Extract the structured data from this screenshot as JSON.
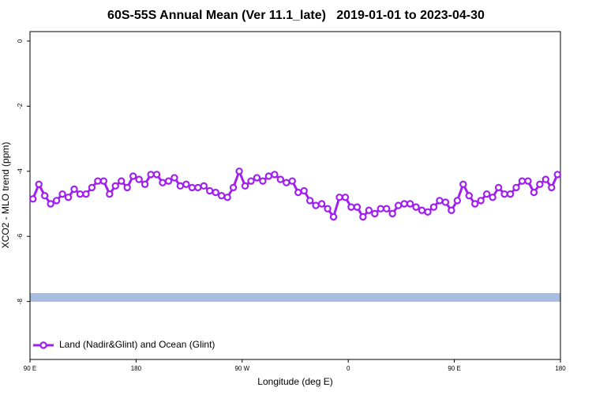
{
  "chart_data": {
    "type": "line",
    "title": "60S-55S Annual Mean (Ver 11.1_late)   2019-01-01 to 2023-04-30",
    "x_label": "Longitude (deg E)",
    "y_label": "XCO2 - MLO trend (ppm)",
    "x": [
      92.5,
      97.5,
      102.5,
      107.5,
      112.5,
      117.5,
      122.5,
      127.5,
      132.5,
      137.5,
      142.5,
      147.5,
      152.5,
      157.5,
      162.5,
      167.5,
      172.5,
      177.5,
      182.5,
      187.5,
      192.5,
      197.5,
      202.5,
      207.5,
      212.5,
      217.5,
      222.5,
      227.5,
      232.5,
      237.5,
      242.5,
      247.5,
      252.5,
      257.5,
      262.5,
      267.5,
      272.5,
      277.5,
      282.5,
      287.5,
      292.5,
      297.5,
      302.5,
      307.5,
      312.5,
      317.5,
      322.5,
      327.5,
      332.5,
      337.5,
      342.5,
      347.5,
      352.5,
      357.5,
      362.5,
      367.5,
      372.5,
      377.5,
      382.5,
      387.5,
      392.5,
      397.5,
      402.5,
      407.5,
      412.5,
      417.5,
      422.5,
      427.5,
      432.5,
      437.5,
      442.5,
      447.5,
      452.5,
      457.5,
      462.5,
      467.5,
      472.5,
      477.5,
      482.5,
      487.5,
      492.5,
      497.5,
      502.5,
      507.5,
      512.5,
      517.5,
      522.5,
      527.5,
      532.5,
      537.5
    ],
    "series": [
      {
        "name": "Land (Nadir&Glint) and Ocean (Glint)",
        "color": "#a020f0",
        "values": [
          -4.85,
          -4.4,
          -4.75,
          -5.0,
          -4.9,
          -4.7,
          -4.8,
          -4.55,
          -4.7,
          -4.7,
          -4.5,
          -4.3,
          -4.3,
          -4.7,
          -4.45,
          -4.3,
          -4.5,
          -4.15,
          -4.25,
          -4.4,
          -4.1,
          -4.1,
          -4.35,
          -4.3,
          -4.2,
          -4.45,
          -4.4,
          -4.5,
          -4.5,
          -4.45,
          -4.6,
          -4.65,
          -4.75,
          -4.8,
          -4.5,
          -4.0,
          -4.45,
          -4.3,
          -4.2,
          -4.3,
          -4.15,
          -4.1,
          -4.25,
          -4.35,
          -4.3,
          -4.65,
          -4.6,
          -4.9,
          -5.05,
          -5.0,
          -5.15,
          -5.4,
          -4.8,
          -4.8,
          -5.1,
          -5.1,
          -5.4,
          -5.2,
          -5.3,
          -5.15,
          -5.15,
          -5.3,
          -5.05,
          -5.0,
          -5.0,
          -5.1,
          -5.2,
          -5.25,
          -5.1,
          -4.9,
          -4.95,
          -5.2,
          -4.9,
          -4.4,
          -4.75,
          -5.0,
          -4.9,
          -4.7,
          -4.8,
          -4.5,
          -4.7,
          -4.7,
          -4.5,
          -4.3,
          -4.3,
          -4.65,
          -4.4,
          -4.25,
          -4.5,
          -4.1
        ]
      }
    ],
    "xlim": [
      90,
      540
    ],
    "ylim": [
      -9.78,
      0.29
    ],
    "xticks": [
      {
        "value": 90,
        "label": "90 E"
      },
      180,
      {
        "value": 270,
        "label": "90 W"
      },
      {
        "value": 360,
        "label": "0"
      },
      {
        "value": 450,
        "label": "90 E"
      },
      {
        "value": 540,
        "label": "180"
      }
    ],
    "yticks": [
      0,
      -2,
      -4,
      -6,
      -8
    ],
    "legend": "bottom-left"
  }
}
